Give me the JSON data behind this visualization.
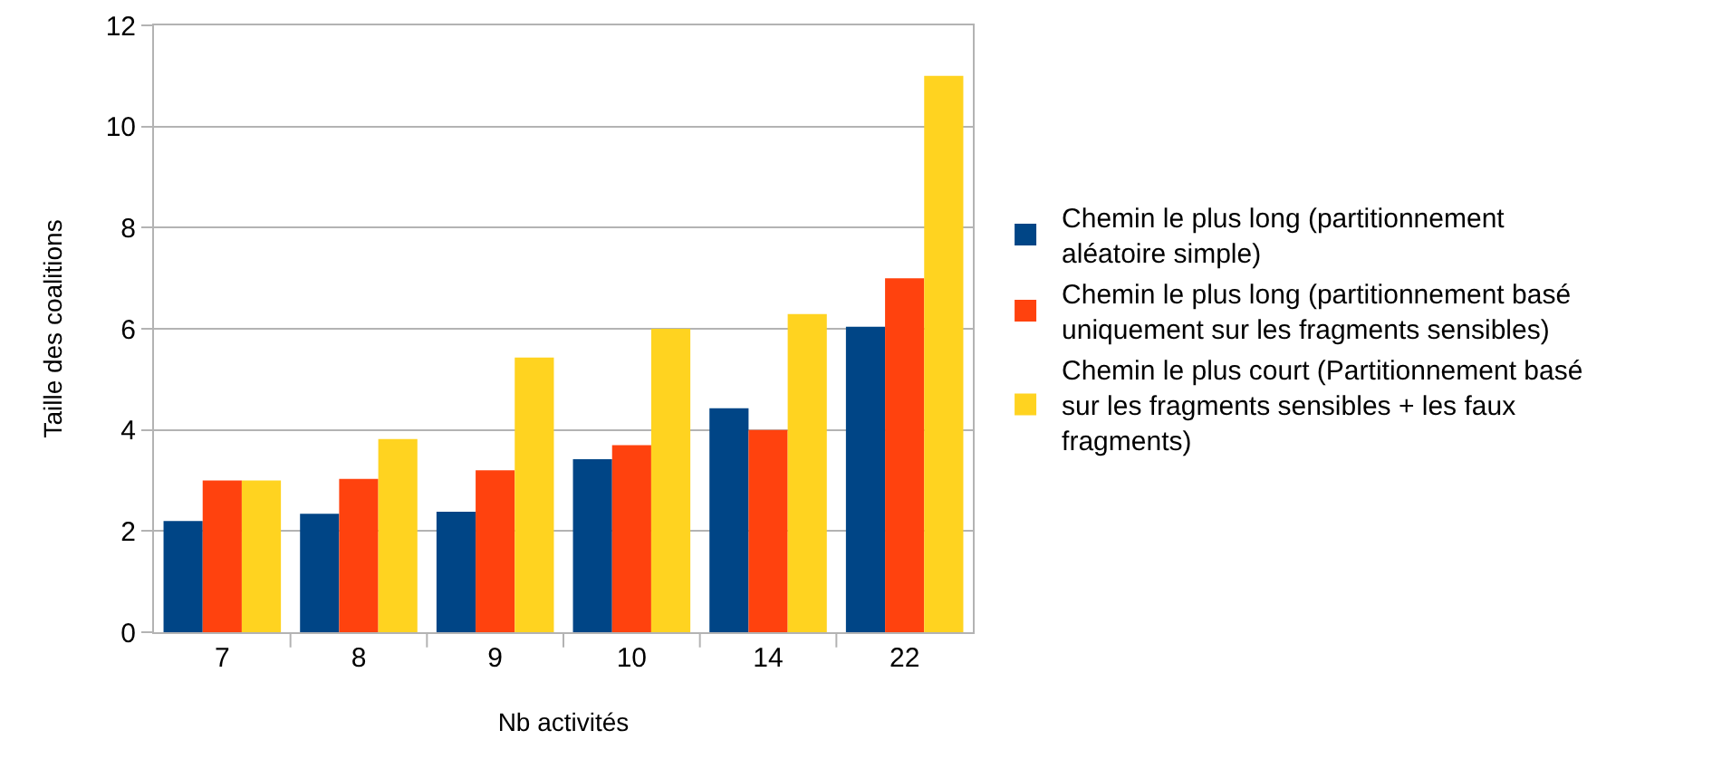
{
  "chart_data": {
    "type": "bar",
    "xlabel": "Nb activités",
    "ylabel": "Taille des coalitions",
    "categories": [
      "7",
      "8",
      "9",
      "10",
      "14",
      "22"
    ],
    "series": [
      {
        "name": "Chemin le plus long (partitionnement aléatoire simple)",
        "color": "#004586",
        "values": [
          2.2,
          2.34,
          2.38,
          3.42,
          4.43,
          6.04
        ]
      },
      {
        "name": "Chemin le plus long (partitionnement basé uniquement sur les fragments sensibles)",
        "color": "#ff420e",
        "values": [
          3.0,
          3.03,
          3.2,
          3.7,
          4.0,
          7.0
        ]
      },
      {
        "name": "Chemin le plus court (Partitionnement basé sur les fragments sensibles + les faux fragments)",
        "color": "#ffd320",
        "values": [
          3.0,
          3.82,
          5.43,
          6.0,
          6.29,
          11.0
        ]
      }
    ],
    "ylim": [
      0,
      12
    ],
    "yticks": [
      0,
      2,
      4,
      6,
      8,
      10,
      12
    ],
    "grid": "y",
    "legend": "right"
  }
}
